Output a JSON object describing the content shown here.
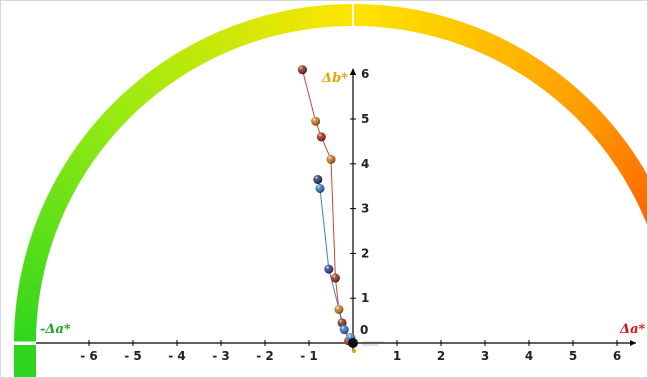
{
  "chart_data": {
    "type": "scatter",
    "title": "",
    "xlabel": "Δa*",
    "xlabel_negative": "-Δa*",
    "ylabel": "Δb*",
    "xlim": [
      -6.2,
      6.2
    ],
    "ylim": [
      0,
      6.3
    ],
    "x_ticks": [
      "- 6",
      "- 5",
      "- 4",
      "- 3",
      "- 2",
      "- 1",
      "1",
      "2",
      "3",
      "4",
      "5",
      "6"
    ],
    "y_ticks": [
      "1",
      "2",
      "3",
      "4",
      "5",
      "6"
    ],
    "origin_label": "0",
    "hue_arc_colors": [
      "#2fd61e",
      "#9bea10",
      "#ffe500",
      "#ff9c00",
      "#ff2e00"
    ],
    "grid": false,
    "series": [
      {
        "color": "#d1403a",
        "points": [
          {
            "x": -1.15,
            "y": 6.1,
            "color": "#8b1b12"
          },
          {
            "x": -0.85,
            "y": 4.95,
            "color": "#c9731c"
          },
          {
            "x": -0.72,
            "y": 4.6,
            "color": "#a81e10"
          },
          {
            "x": -0.5,
            "y": 4.1,
            "color": "#c56e1e"
          },
          {
            "x": -0.4,
            "y": 1.45,
            "color": "#8f2a18"
          },
          {
            "x": -0.32,
            "y": 0.75,
            "color": "#c47a1e"
          },
          {
            "x": -0.25,
            "y": 0.45,
            "color": "#7a2a16"
          },
          {
            "x": -0.1,
            "y": 0.05,
            "color": "#b03020"
          }
        ]
      },
      {
        "color": "#4a78c8",
        "points": [
          {
            "x": -0.8,
            "y": 3.65,
            "color": "#1a2a5a"
          },
          {
            "x": -0.75,
            "y": 3.45,
            "color": "#2f6fc0"
          },
          {
            "x": -0.55,
            "y": 1.65,
            "color": "#2a3d7a"
          },
          {
            "x": -0.2,
            "y": 0.3,
            "color": "#2a6cc0"
          },
          {
            "x": -0.05,
            "y": 0.12,
            "color": "#3a7ad0"
          }
        ]
      }
    ]
  }
}
